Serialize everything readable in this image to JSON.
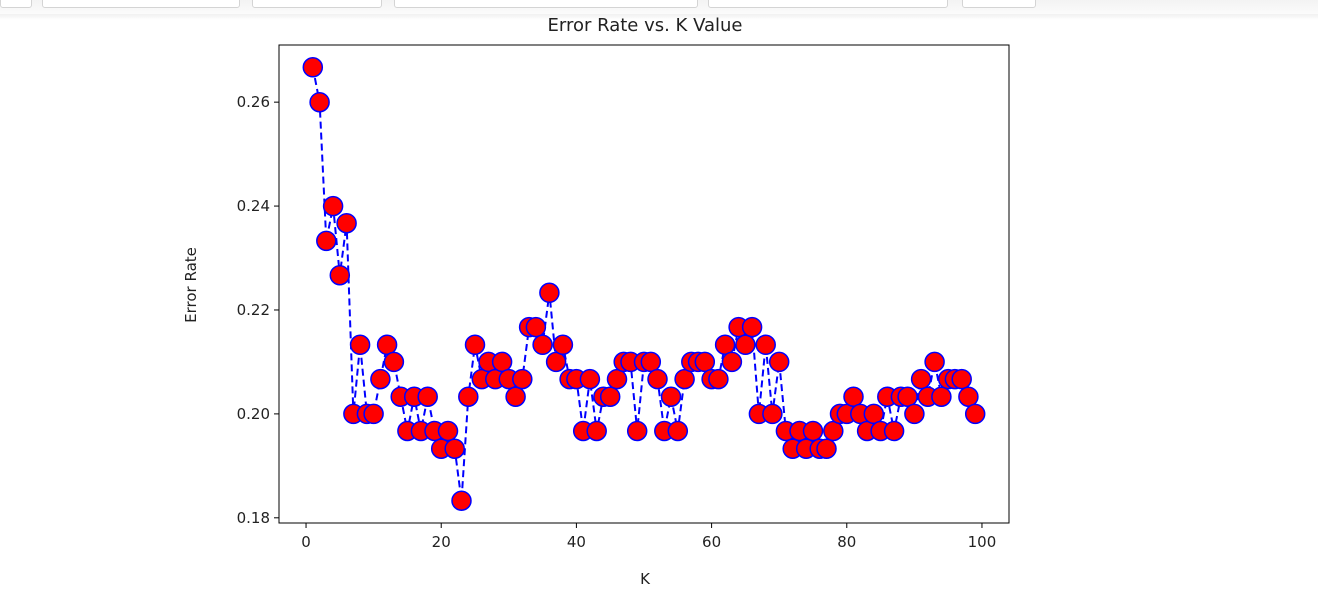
{
  "colors": {
    "line": "#0000ff",
    "marker_fill": "#ff0000",
    "marker_edge": "#0000ff"
  },
  "chart_data": {
    "type": "line",
    "title": "Error Rate vs. K Value",
    "xlabel": "K",
    "ylabel": "Error Rate",
    "xlim": [
      -4,
      104
    ],
    "ylim": [
      0.179,
      0.271
    ],
    "xticks": [
      0,
      20,
      40,
      60,
      80,
      100
    ],
    "yticks": [
      0.18,
      0.2,
      0.22,
      0.24,
      0.26
    ],
    "ytick_labels": [
      "0.18",
      "0.20",
      "0.22",
      "0.24",
      "0.26"
    ],
    "line_style": "dashed",
    "marker": "circle",
    "grid": false,
    "legend": "none",
    "series": [
      {
        "x": [
          1,
          2,
          3,
          4,
          5,
          6,
          7,
          8,
          9,
          10,
          11,
          12,
          13,
          14,
          15,
          16,
          17,
          18,
          19,
          20,
          21,
          22,
          23,
          24,
          25,
          26,
          27,
          28,
          29,
          30,
          31,
          32,
          33,
          34,
          35,
          36,
          37,
          38,
          39,
          40,
          41,
          42,
          43,
          44,
          45,
          46,
          47,
          48,
          49,
          50,
          51,
          52,
          53,
          54,
          55,
          56,
          57,
          58,
          59,
          60,
          61,
          62,
          63,
          64,
          65,
          66,
          67,
          68,
          69,
          70,
          71,
          72,
          73,
          74,
          75,
          76,
          77,
          78,
          79,
          80,
          81,
          82,
          83,
          84,
          85,
          86,
          87,
          88,
          89,
          90,
          91,
          92,
          93,
          94,
          95,
          96,
          97,
          98,
          99
        ],
        "y": [
          0.2667,
          0.26,
          0.2333,
          0.24,
          0.2267,
          0.2367,
          0.2,
          0.2133,
          0.2,
          0.2,
          0.2067,
          0.2133,
          0.21,
          0.2033,
          0.1967,
          0.2033,
          0.1967,
          0.2033,
          0.1967,
          0.1933,
          0.1967,
          0.1933,
          0.1833,
          0.2033,
          0.2133,
          0.2067,
          0.21,
          0.2067,
          0.21,
          0.2067,
          0.2033,
          0.2067,
          0.2167,
          0.2167,
          0.2133,
          0.2233,
          0.21,
          0.2133,
          0.2067,
          0.2067,
          0.1967,
          0.2067,
          0.1967,
          0.2033,
          0.2033,
          0.2067,
          0.21,
          0.21,
          0.1967,
          0.21,
          0.21,
          0.2067,
          0.1967,
          0.2033,
          0.1967,
          0.2067,
          0.21,
          0.21,
          0.21,
          0.2067,
          0.2067,
          0.2133,
          0.21,
          0.2167,
          0.2133,
          0.2167,
          0.2,
          0.2133,
          0.2,
          0.21,
          0.1967,
          0.1933,
          0.1967,
          0.1933,
          0.1967,
          0.1933,
          0.1933,
          0.1967,
          0.2,
          0.2,
          0.2033,
          0.2,
          0.1967,
          0.2,
          0.1967,
          0.2033,
          0.1967,
          0.2033,
          0.2033,
          0.2,
          0.2067,
          0.2033,
          0.21,
          0.2033,
          0.2067,
          0.2067,
          0.2067,
          0.2033,
          0.2
        ]
      }
    ]
  }
}
